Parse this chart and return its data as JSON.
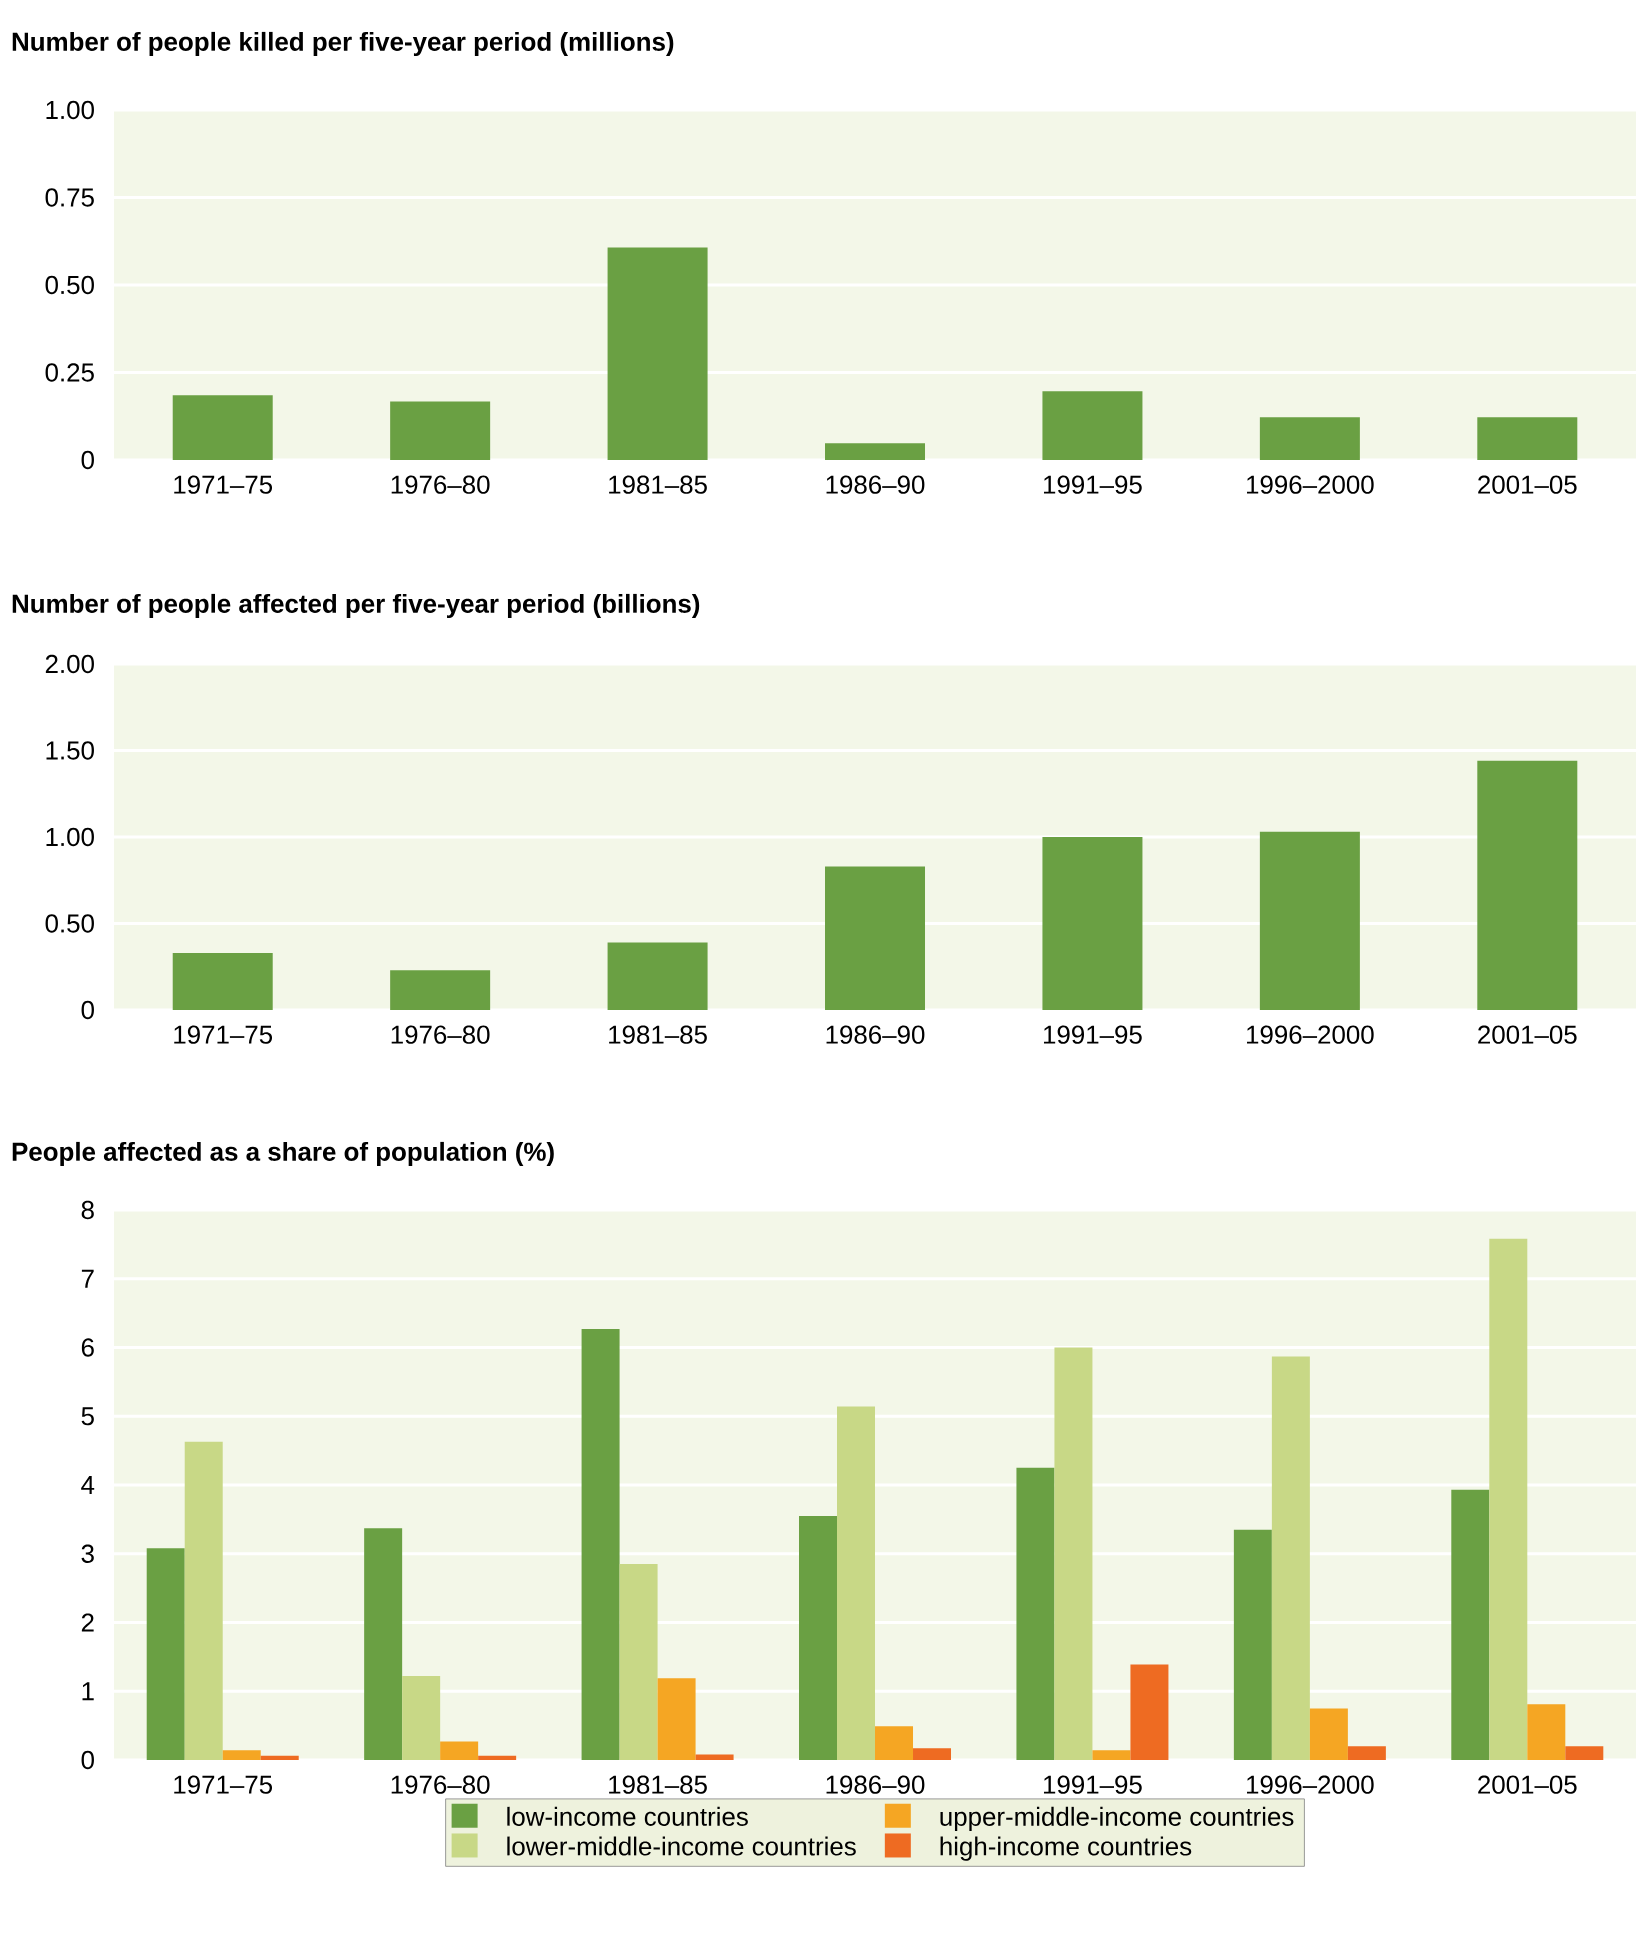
{
  "chart_data": [
    {
      "type": "bar",
      "title": "Number of people killed per five-year period (millions)",
      "categories": [
        "1971–75",
        "1976–80",
        "1981–85",
        "1986–90",
        "1991–95",
        "1996–2000",
        "2001–05"
      ],
      "values": [
        0.185,
        0.167,
        0.607,
        0.048,
        0.196,
        0.122,
        0.122
      ],
      "color": "#6aa043",
      "ylim": [
        0,
        1
      ],
      "yticks": [
        0,
        0.25,
        {
          "value": 0.5,
          "label": "0.50"
        },
        0.75,
        {
          "value": 1,
          "label": "1.00"
        }
      ],
      "grid": "y"
    },
    {
      "type": "bar",
      "title": "Number of people affected per five-year period (billions)",
      "categories": [
        "1971–75",
        "1976–80",
        "1981–85",
        "1986–90",
        "1991–95",
        "1996–2000",
        "2001–05"
      ],
      "values": [
        0.33,
        0.23,
        0.39,
        0.83,
        1.0,
        1.03,
        1.44
      ],
      "color": "#6aa043",
      "ylim": [
        0,
        2
      ],
      "yticks": [
        0,
        {
          "value": 0.5,
          "label": "0.50"
        },
        {
          "value": 1,
          "label": "1.00"
        },
        {
          "value": 1.5,
          "label": "1.50"
        },
        {
          "value": 2,
          "label": "2.00"
        }
      ],
      "grid": "y"
    },
    {
      "type": "bar",
      "title": "People affected as a share of population (%)",
      "categories": [
        "1971–75",
        "1976–80",
        "1981–85",
        "1986–90",
        "1991–95",
        "1996–2000",
        "2001–05"
      ],
      "series": [
        {
          "name": "low-income countries",
          "color": "#6aa043",
          "values": [
            3.08,
            3.37,
            6.27,
            3.55,
            4.25,
            3.35,
            3.93
          ]
        },
        {
          "name": "lower-middle-income countries",
          "color": "#c8d886",
          "values": [
            4.63,
            1.22,
            2.85,
            5.14,
            6.0,
            5.87,
            7.58
          ]
        },
        {
          "name": "upper-middle-income countries",
          "color": "#f5a623",
          "values": [
            0.14,
            0.27,
            1.19,
            0.49,
            0.14,
            0.75,
            0.81
          ]
        },
        {
          "name": "high-income countries",
          "color": "#ee6b22",
          "values": [
            0.06,
            0.06,
            0.08,
            0.17,
            1.39,
            0.2,
            0.2
          ]
        }
      ],
      "ylim": [
        0,
        8
      ],
      "yticks": [
        0,
        1,
        2,
        3,
        4,
        5,
        6,
        7,
        8
      ],
      "grid": "y",
      "legend": "bottom"
    }
  ]
}
